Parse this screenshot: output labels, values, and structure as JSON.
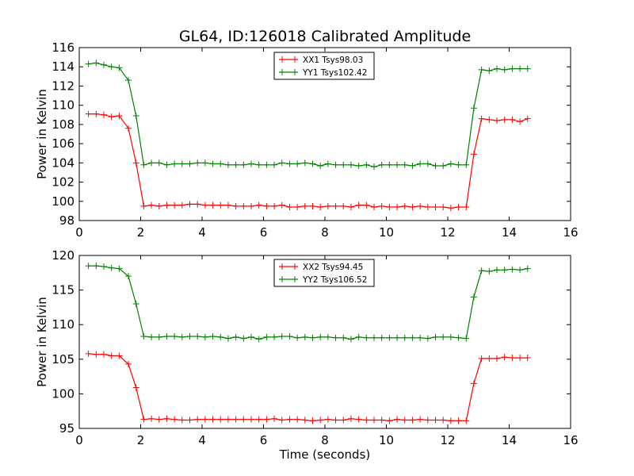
{
  "chart_data": [
    {
      "type": "line",
      "title": "GL64, ID:126018 Calibrated Amplitude",
      "xlabel": "",
      "ylabel": "Power in Kelvin",
      "xlim": [
        0,
        16
      ],
      "ylim": [
        98,
        116
      ],
      "xticks": [
        "0",
        "2",
        "4",
        "6",
        "8",
        "10",
        "12",
        "14",
        "16"
      ],
      "yticks": [
        "98",
        "100",
        "102",
        "104",
        "106",
        "108",
        "110",
        "112",
        "114",
        "116"
      ],
      "legend_position": "top-center",
      "series": [
        {
          "name": "XX1 Tsys98.03",
          "color": "#ff0000",
          "x": [
            0.3,
            0.55,
            0.8,
            1.05,
            1.3,
            1.6,
            1.85,
            2.1,
            2.35,
            2.6,
            2.85,
            3.1,
            3.35,
            3.6,
            3.85,
            4.1,
            4.35,
            4.6,
            4.85,
            5.1,
            5.35,
            5.6,
            5.85,
            6.1,
            6.35,
            6.6,
            6.85,
            7.1,
            7.35,
            7.6,
            7.85,
            8.1,
            8.35,
            8.6,
            8.85,
            9.1,
            9.35,
            9.6,
            9.85,
            10.1,
            10.35,
            10.6,
            10.85,
            11.1,
            11.35,
            11.6,
            11.85,
            12.1,
            12.35,
            12.6,
            12.85,
            13.1,
            13.35,
            13.6,
            13.85,
            14.1,
            14.35,
            14.6
          ],
          "values": [
            109.1,
            109.1,
            109.0,
            108.8,
            108.9,
            107.6,
            104.0,
            99.5,
            99.6,
            99.5,
            99.6,
            99.6,
            99.6,
            99.7,
            99.7,
            99.6,
            99.6,
            99.6,
            99.6,
            99.5,
            99.5,
            99.5,
            99.6,
            99.5,
            99.5,
            99.6,
            99.4,
            99.4,
            99.5,
            99.5,
            99.4,
            99.5,
            99.5,
            99.5,
            99.4,
            99.6,
            99.6,
            99.4,
            99.5,
            99.4,
            99.4,
            99.5,
            99.4,
            99.5,
            99.4,
            99.4,
            99.4,
            99.3,
            99.4,
            99.4,
            104.9,
            108.6,
            108.5,
            108.4,
            108.5,
            108.5,
            108.3,
            108.6
          ]
        },
        {
          "name": "YY1 Tsys102.42",
          "color": "#008000",
          "x": [
            0.3,
            0.55,
            0.8,
            1.05,
            1.3,
            1.6,
            1.85,
            2.1,
            2.35,
            2.6,
            2.85,
            3.1,
            3.35,
            3.6,
            3.85,
            4.1,
            4.35,
            4.6,
            4.85,
            5.1,
            5.35,
            5.6,
            5.85,
            6.1,
            6.35,
            6.6,
            6.85,
            7.1,
            7.35,
            7.6,
            7.85,
            8.1,
            8.35,
            8.6,
            8.85,
            9.1,
            9.35,
            9.6,
            9.85,
            10.1,
            10.35,
            10.6,
            10.85,
            11.1,
            11.35,
            11.6,
            11.85,
            12.1,
            12.35,
            12.6,
            12.85,
            13.1,
            13.35,
            13.6,
            13.85,
            14.1,
            14.35,
            14.6
          ],
          "values": [
            114.3,
            114.4,
            114.2,
            114.0,
            113.9,
            112.6,
            108.9,
            103.8,
            104.0,
            104.0,
            103.8,
            103.9,
            103.9,
            103.9,
            104.0,
            104.0,
            103.9,
            103.9,
            103.8,
            103.8,
            103.8,
            103.9,
            103.8,
            103.8,
            103.8,
            104.0,
            103.9,
            103.9,
            104.0,
            103.9,
            103.7,
            103.9,
            103.8,
            103.8,
            103.8,
            103.7,
            103.8,
            103.6,
            103.8,
            103.8,
            103.8,
            103.8,
            103.7,
            103.9,
            103.9,
            103.7,
            103.7,
            103.9,
            103.8,
            103.8,
            109.7,
            113.7,
            113.6,
            113.8,
            113.7,
            113.8,
            113.8,
            113.8
          ]
        }
      ]
    },
    {
      "type": "line",
      "title": "",
      "xlabel": "Time (seconds)",
      "ylabel": "Power in Kelvin",
      "xlim": [
        0,
        16
      ],
      "ylim": [
        95,
        120
      ],
      "xticks": [
        "0",
        "2",
        "4",
        "6",
        "8",
        "10",
        "12",
        "14",
        "16"
      ],
      "yticks": [
        "95",
        "100",
        "105",
        "110",
        "115",
        "120"
      ],
      "legend_position": "top-center",
      "series": [
        {
          "name": "XX2 Tsys94.45",
          "color": "#ff0000",
          "x": [
            0.3,
            0.55,
            0.8,
            1.05,
            1.3,
            1.6,
            1.85,
            2.1,
            2.35,
            2.6,
            2.85,
            3.1,
            3.35,
            3.6,
            3.85,
            4.1,
            4.35,
            4.6,
            4.85,
            5.1,
            5.35,
            5.6,
            5.85,
            6.1,
            6.35,
            6.6,
            6.85,
            7.1,
            7.35,
            7.6,
            7.85,
            8.1,
            8.35,
            8.6,
            8.85,
            9.1,
            9.35,
            9.6,
            9.85,
            10.1,
            10.35,
            10.6,
            10.85,
            11.1,
            11.35,
            11.6,
            11.85,
            12.1,
            12.35,
            12.6,
            12.85,
            13.1,
            13.35,
            13.6,
            13.85,
            14.1,
            14.35,
            14.6
          ],
          "values": [
            105.8,
            105.7,
            105.7,
            105.5,
            105.5,
            104.3,
            100.9,
            96.3,
            96.4,
            96.3,
            96.4,
            96.3,
            96.2,
            96.2,
            96.3,
            96.3,
            96.3,
            96.3,
            96.3,
            96.3,
            96.3,
            96.3,
            96.3,
            96.3,
            96.4,
            96.2,
            96.3,
            96.3,
            96.2,
            96.1,
            96.2,
            96.3,
            96.2,
            96.2,
            96.4,
            96.3,
            96.2,
            96.2,
            96.2,
            96.1,
            96.3,
            96.2,
            96.2,
            96.3,
            96.2,
            96.2,
            96.2,
            96.1,
            96.1,
            96.1,
            101.5,
            105.1,
            105.1,
            105.1,
            105.3,
            105.2,
            105.2,
            105.2
          ]
        },
        {
          "name": "YY2 Tsys106.52",
          "color": "#008000",
          "x": [
            0.3,
            0.55,
            0.8,
            1.05,
            1.3,
            1.6,
            1.85,
            2.1,
            2.35,
            2.6,
            2.85,
            3.1,
            3.35,
            3.6,
            3.85,
            4.1,
            4.35,
            4.6,
            4.85,
            5.1,
            5.35,
            5.6,
            5.85,
            6.1,
            6.35,
            6.6,
            6.85,
            7.1,
            7.35,
            7.6,
            7.85,
            8.1,
            8.35,
            8.6,
            8.85,
            9.1,
            9.35,
            9.6,
            9.85,
            10.1,
            10.35,
            10.6,
            10.85,
            11.1,
            11.35,
            11.6,
            11.85,
            12.1,
            12.35,
            12.6,
            12.85,
            13.1,
            13.35,
            13.6,
            13.85,
            14.1,
            14.35,
            14.6
          ],
          "values": [
            118.5,
            118.5,
            118.4,
            118.2,
            118.1,
            117.0,
            113.0,
            108.3,
            108.2,
            108.2,
            108.3,
            108.3,
            108.2,
            108.3,
            108.3,
            108.2,
            108.3,
            108.2,
            108.0,
            108.2,
            108.0,
            108.2,
            107.9,
            108.2,
            108.2,
            108.3,
            108.3,
            108.1,
            108.2,
            108.1,
            108.2,
            108.2,
            108.1,
            108.1,
            107.9,
            108.2,
            108.1,
            108.1,
            108.1,
            108.1,
            108.1,
            108.1,
            108.1,
            108.1,
            108.0,
            108.2,
            108.2,
            108.2,
            108.1,
            108.0,
            114.0,
            117.8,
            117.7,
            117.9,
            117.9,
            118.0,
            117.9,
            118.1
          ]
        }
      ]
    }
  ]
}
